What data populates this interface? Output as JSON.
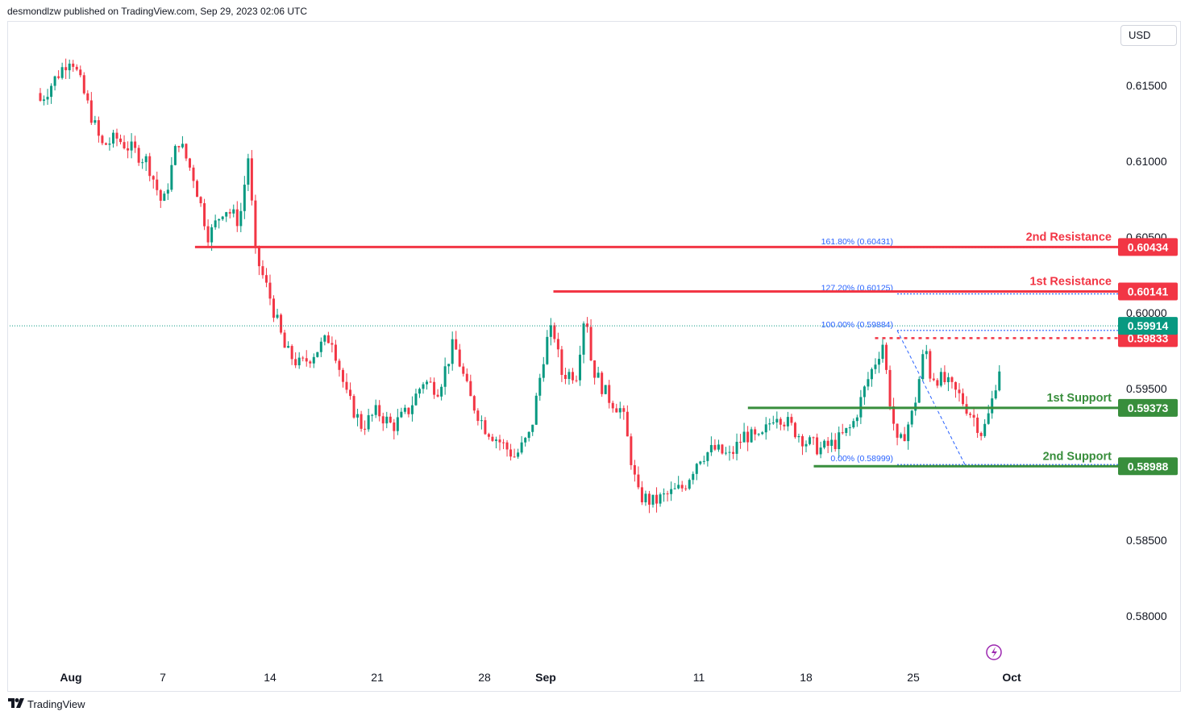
{
  "header": {
    "published": "desmondlzw published on TradingView.com, Sep 29, 2023 02:06 UTC"
  },
  "currency": "USD",
  "footer": {
    "brand": "TradingView",
    "logo_icon": "tradingview-logo-icon"
  },
  "colors": {
    "up": "#089981",
    "down": "#f23645",
    "resistance": "#f23645",
    "support": "#388e3c",
    "fib": "#2962ff",
    "last_price": "#089981"
  },
  "chart_data": {
    "type": "candlestick",
    "instrument_currency": "USD",
    "y_ticks": [
      "0.61500",
      "0.61000",
      "0.60500",
      "0.60000",
      "0.59500",
      "0.58500",
      "0.58000"
    ],
    "x_ticks": [
      "Aug",
      "7",
      "14",
      "21",
      "28",
      "Sep",
      "11",
      "18",
      "25",
      "Oct"
    ],
    "last_price": {
      "label": "0.59914",
      "value": 0.59914
    },
    "levels": [
      {
        "name": "2nd Resistance",
        "label": "0.60434",
        "value": 0.60434,
        "kind": "resistance",
        "x_start": "Aug 9"
      },
      {
        "name": "1st Resistance",
        "label": "0.60141",
        "value": 0.60141,
        "kind": "resistance",
        "x_start": "Sep 1"
      },
      {
        "name": "",
        "label": "0.59833",
        "value": 0.59833,
        "kind": "resistance-dotted",
        "x_start": "Sep 22"
      },
      {
        "name": "1st Support",
        "label": "0.59373",
        "value": 0.59373,
        "kind": "support",
        "x_start": "Sep 14"
      },
      {
        "name": "2nd Support",
        "label": "0.58988",
        "value": 0.58988,
        "kind": "support",
        "x_start": "Sep 19"
      }
    ],
    "fib_levels": [
      {
        "label": "161.80% (0.60431)",
        "value": 0.60431
      },
      {
        "label": "127.20% (0.60125)",
        "value": 0.60125
      },
      {
        "label": "100.00% (0.59884)",
        "value": 0.59884
      },
      {
        "label": "0.00% (0.58999)",
        "value": 0.58999
      }
    ],
    "fib_anchor": {
      "from": "Sep 25",
      "to": "Sep 27"
    },
    "series_summary": {
      "start_approx": 0.616,
      "low_approx": 0.5863,
      "end": 0.59914
    }
  }
}
